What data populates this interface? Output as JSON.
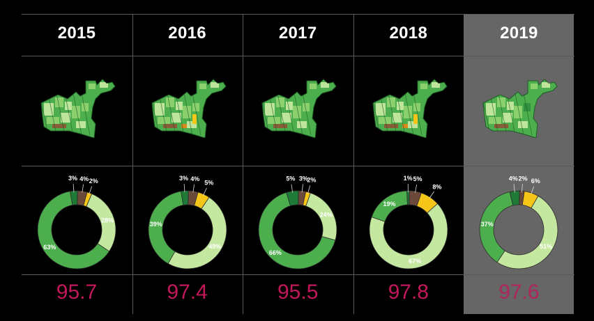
{
  "columns": [
    {
      "year": "2015",
      "score": "95.7",
      "highlight": false,
      "slices": [
        {
          "value": 4,
          "label": "4%"
        },
        {
          "value": 2,
          "label": "2%"
        },
        {
          "value": 28,
          "label": "28%"
        },
        {
          "value": 63,
          "label": "63%"
        },
        {
          "value": 3,
          "label": "3%"
        }
      ]
    },
    {
      "year": "2016",
      "score": "97.4",
      "highlight": false,
      "slices": [
        {
          "value": 4,
          "label": "4%"
        },
        {
          "value": 5,
          "label": "5%"
        },
        {
          "value": 49,
          "label": "49%"
        },
        {
          "value": 39,
          "label": "39%"
        },
        {
          "value": 3,
          "label": "3%"
        }
      ]
    },
    {
      "year": "2017",
      "score": "95.5",
      "highlight": false,
      "slices": [
        {
          "value": 3,
          "label": "3%"
        },
        {
          "value": 2,
          "label": "2%"
        },
        {
          "value": 24,
          "label": "24%"
        },
        {
          "value": 66,
          "label": "66%"
        },
        {
          "value": 5,
          "label": "5%"
        }
      ]
    },
    {
      "year": "2018",
      "score": "97.8",
      "highlight": false,
      "slices": [
        {
          "value": 5,
          "label": "5%"
        },
        {
          "value": 8,
          "label": "8%"
        },
        {
          "value": 67,
          "label": "67%"
        },
        {
          "value": 19,
          "label": "19%"
        },
        {
          "value": 1,
          "label": "1%"
        }
      ]
    },
    {
      "year": "2019",
      "score": "97.6",
      "highlight": true,
      "slices": [
        {
          "value": 2,
          "label": "2%"
        },
        {
          "value": 6,
          "label": "6%"
        },
        {
          "value": 51,
          "label": "51%"
        },
        {
          "value": 37,
          "label": "37%"
        },
        {
          "value": 4,
          "label": "4%"
        }
      ]
    }
  ],
  "chart_data": {
    "type": "pie",
    "categories": [
      "2015",
      "2016",
      "2017",
      "2018",
      "2019"
    ],
    "series_colors": [
      "#6b4a3c",
      "#f5c518",
      "#c5e8a0",
      "#4cae4c",
      "#1e7a36"
    ],
    "series": [
      {
        "values": [
          4,
          4,
          3,
          5,
          2
        ]
      },
      {
        "values": [
          2,
          5,
          2,
          8,
          6
        ]
      },
      {
        "values": [
          28,
          49,
          24,
          67,
          51
        ]
      },
      {
        "values": [
          63,
          39,
          66,
          19,
          37
        ]
      },
      {
        "values": [
          3,
          3,
          5,
          1,
          4
        ]
      }
    ],
    "scores": [
      95.7,
      97.4,
      95.5,
      97.8,
      97.6
    ],
    "highlighted_category": "2019"
  }
}
